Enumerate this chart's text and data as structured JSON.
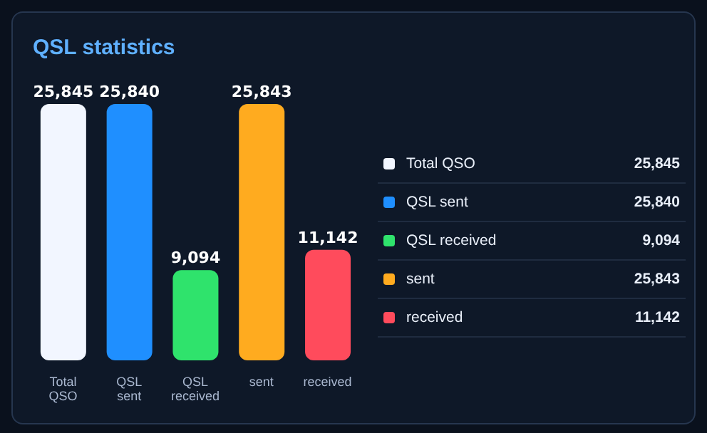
{
  "chart_data": {
    "type": "bar",
    "title": "QSL statistics",
    "categories": [
      "Total QSO",
      "QSL sent",
      "QSL received",
      "sent",
      "received"
    ],
    "values": [
      25845,
      25840,
      9094,
      25843,
      11142
    ],
    "value_labels": [
      "25,845",
      "25,840",
      "9,094",
      "25,843",
      "11,142"
    ],
    "colors": [
      "#f2f6ff",
      "#1f8fff",
      "#2fe36c",
      "#ffab1f",
      "#ff4b5c"
    ]
  }
}
